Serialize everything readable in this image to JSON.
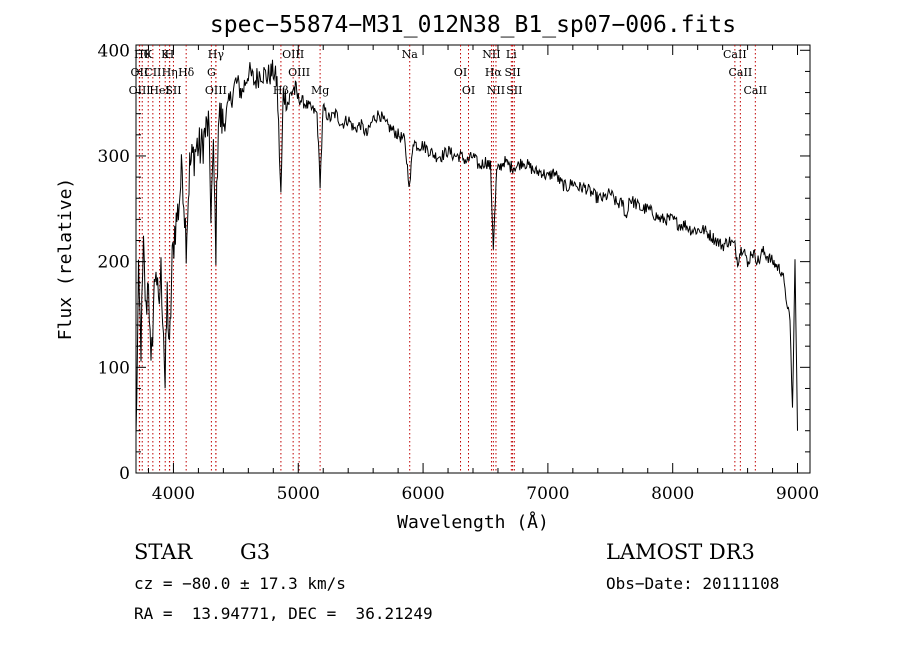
{
  "chart_data": {
    "type": "line",
    "title": "spec−55874−M31_012N38_B1_sp07−006.fits",
    "xlabel": "Wavelength (Å)",
    "ylabel": "Flux (relative)",
    "xlim": [
      3700,
      9100
    ],
    "ylim": [
      0,
      405
    ],
    "x_ticks": [
      4000,
      5000,
      6000,
      7000,
      8000,
      9000
    ],
    "y_ticks": [
      0,
      100,
      200,
      300,
      400
    ],
    "series": [
      {
        "name": "spectrum",
        "x": [
          3700,
          3720,
          3740,
          3760,
          3780,
          3800,
          3820,
          3840,
          3860,
          3880,
          3900,
          3920,
          3933,
          3950,
          3968,
          3990,
          4010,
          4040,
          4070,
          4102,
          4130,
          4160,
          4190,
          4220,
          4250,
          4280,
          4300,
          4320,
          4340,
          4360,
          4400,
          4450,
          4500,
          4550,
          4600,
          4650,
          4700,
          4750,
          4800,
          4830,
          4861,
          4880,
          4920,
          4960,
          5000,
          5050,
          5100,
          5150,
          5175,
          5200,
          5250,
          5300,
          5350,
          5400,
          5450,
          5500,
          5550,
          5600,
          5650,
          5700,
          5750,
          5800,
          5850,
          5893,
          5920,
          5950,
          6000,
          6050,
          6100,
          6150,
          6200,
          6250,
          6300,
          6350,
          6400,
          6450,
          6500,
          6540,
          6563,
          6590,
          6620,
          6650,
          6700,
          6750,
          6800,
          6850,
          6900,
          6950,
          7000,
          7050,
          7100,
          7150,
          7200,
          7250,
          7300,
          7350,
          7400,
          7450,
          7500,
          7550,
          7600,
          7630,
          7650,
          7700,
          7750,
          7800,
          7850,
          7900,
          7950,
          8000,
          8050,
          8100,
          8150,
          8200,
          8250,
          8300,
          8350,
          8400,
          8450,
          8498,
          8520,
          8542,
          8570,
          8600,
          8630,
          8662,
          8690,
          8720,
          8760,
          8800,
          8840,
          8880,
          8900,
          8920,
          8940,
          8960,
          8980,
          9000
        ],
        "y": [
          30,
          180,
          120,
          210,
          150,
          190,
          90,
          160,
          200,
          150,
          190,
          140,
          80,
          170,
          110,
          200,
          230,
          250,
          290,
          220,
          290,
          300,
          310,
          305,
          320,
          330,
          250,
          300,
          215,
          340,
          330,
          350,
          370,
          360,
          380,
          370,
          380,
          375,
          380,
          370,
          260,
          360,
          350,
          365,
          355,
          350,
          345,
          340,
          275,
          345,
          335,
          340,
          330,
          335,
          325,
          330,
          320,
          335,
          340,
          330,
          325,
          320,
          315,
          270,
          315,
          310,
          310,
          305,
          300,
          300,
          305,
          300,
          300,
          295,
          300,
          290,
          295,
          290,
          215,
          285,
          290,
          295,
          290,
          290,
          295,
          290,
          285,
          285,
          280,
          285,
          275,
          270,
          275,
          270,
          270,
          265,
          260,
          260,
          265,
          255,
          255,
          240,
          260,
          255,
          250,
          250,
          245,
          240,
          240,
          240,
          235,
          235,
          230,
          230,
          230,
          225,
          220,
          215,
          220,
          215,
          200,
          210,
          215,
          195,
          210,
          205,
          200,
          210,
          205,
          200,
          195,
          190,
          170,
          160,
          140,
          60,
          200,
          40
        ]
      }
    ],
    "lines": [
      {
        "x": 3750,
        "label": "Hθ"
      },
      {
        "x": 3727,
        "label": "OII"
      },
      {
        "x": 3729,
        "label": "OIII"
      },
      {
        "x": 3798,
        "label": "K"
      },
      {
        "x": 3835,
        "label": "CII"
      },
      {
        "x": 3889,
        "label": "HeI"
      },
      {
        "x": 3934,
        "label": "K"
      },
      {
        "x": 3970,
        "label": "Hη"
      },
      {
        "x": 4000,
        "label": "SII"
      },
      {
        "x": 3968,
        "label": "H"
      },
      {
        "x": 4102,
        "label": "Hδ"
      },
      {
        "x": 4340,
        "label": "OIII"
      },
      {
        "x": 4340,
        "label": "Hγ"
      },
      {
        "x": 4304,
        "label": "G"
      },
      {
        "x": 4861,
        "label": "Hβ"
      },
      {
        "x": 4959,
        "label": "OIII"
      },
      {
        "x": 5007,
        "label": "OIII"
      },
      {
        "x": 5175,
        "label": "Mg"
      },
      {
        "x": 5893,
        "label": "Na"
      },
      {
        "x": 6300,
        "label": "OI"
      },
      {
        "x": 6364,
        "label": "OI"
      },
      {
        "x": 6548,
        "label": "NII"
      },
      {
        "x": 6563,
        "label": "Hα"
      },
      {
        "x": 6584,
        "label": "NII"
      },
      {
        "x": 6707,
        "label": "Li"
      },
      {
        "x": 6717,
        "label": "SII"
      },
      {
        "x": 6731,
        "label": "SII"
      },
      {
        "x": 8498,
        "label": "CaII"
      },
      {
        "x": 8542,
        "label": "CaII"
      },
      {
        "x": 8662,
        "label": "CaII"
      }
    ]
  },
  "info": {
    "class": "STAR",
    "subclass": "G3",
    "survey": "LAMOST DR3",
    "cz": "cz = −80.0 ± 17.3 km/s",
    "obs_date": "Obs−Date: 20111108",
    "coords": "RA =  13.94771, DEC =  36.21249"
  }
}
